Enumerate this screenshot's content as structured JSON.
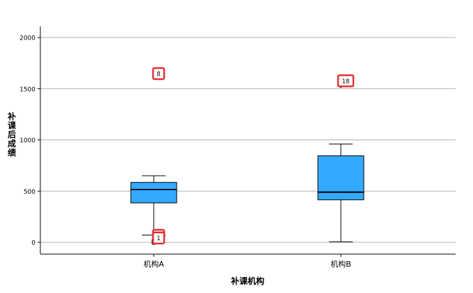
{
  "chart_data": {
    "type": "box",
    "xlabel": "补课机构",
    "ylabel": "补课后成绩",
    "categories": [
      "机构A",
      "机构B"
    ],
    "ylim": [
      -40,
      2120
    ],
    "yticks": [
      0,
      500,
      1000,
      1500,
      2000
    ],
    "grid": true,
    "box_color": "#33aaff",
    "outlier_box_color": "#e53030",
    "boxes": [
      {
        "category": "机构A",
        "whisker_low": 70,
        "q1": 385,
        "median": 515,
        "q3": 585,
        "whisker_high": 650,
        "outliers": [
          {
            "label": "8",
            "value": 1600,
            "marker": "star"
          },
          {
            "label": "5",
            "value": 20,
            "marker": "circle"
          },
          {
            "label": "1",
            "value": -5,
            "marker": "circle"
          }
        ]
      },
      {
        "category": "机构B",
        "whisker_low": 5,
        "q1": 415,
        "median": 490,
        "q3": 845,
        "whisker_high": 960,
        "outliers": [
          {
            "label": "18",
            "value": 1530,
            "marker": "circle"
          }
        ]
      }
    ]
  }
}
